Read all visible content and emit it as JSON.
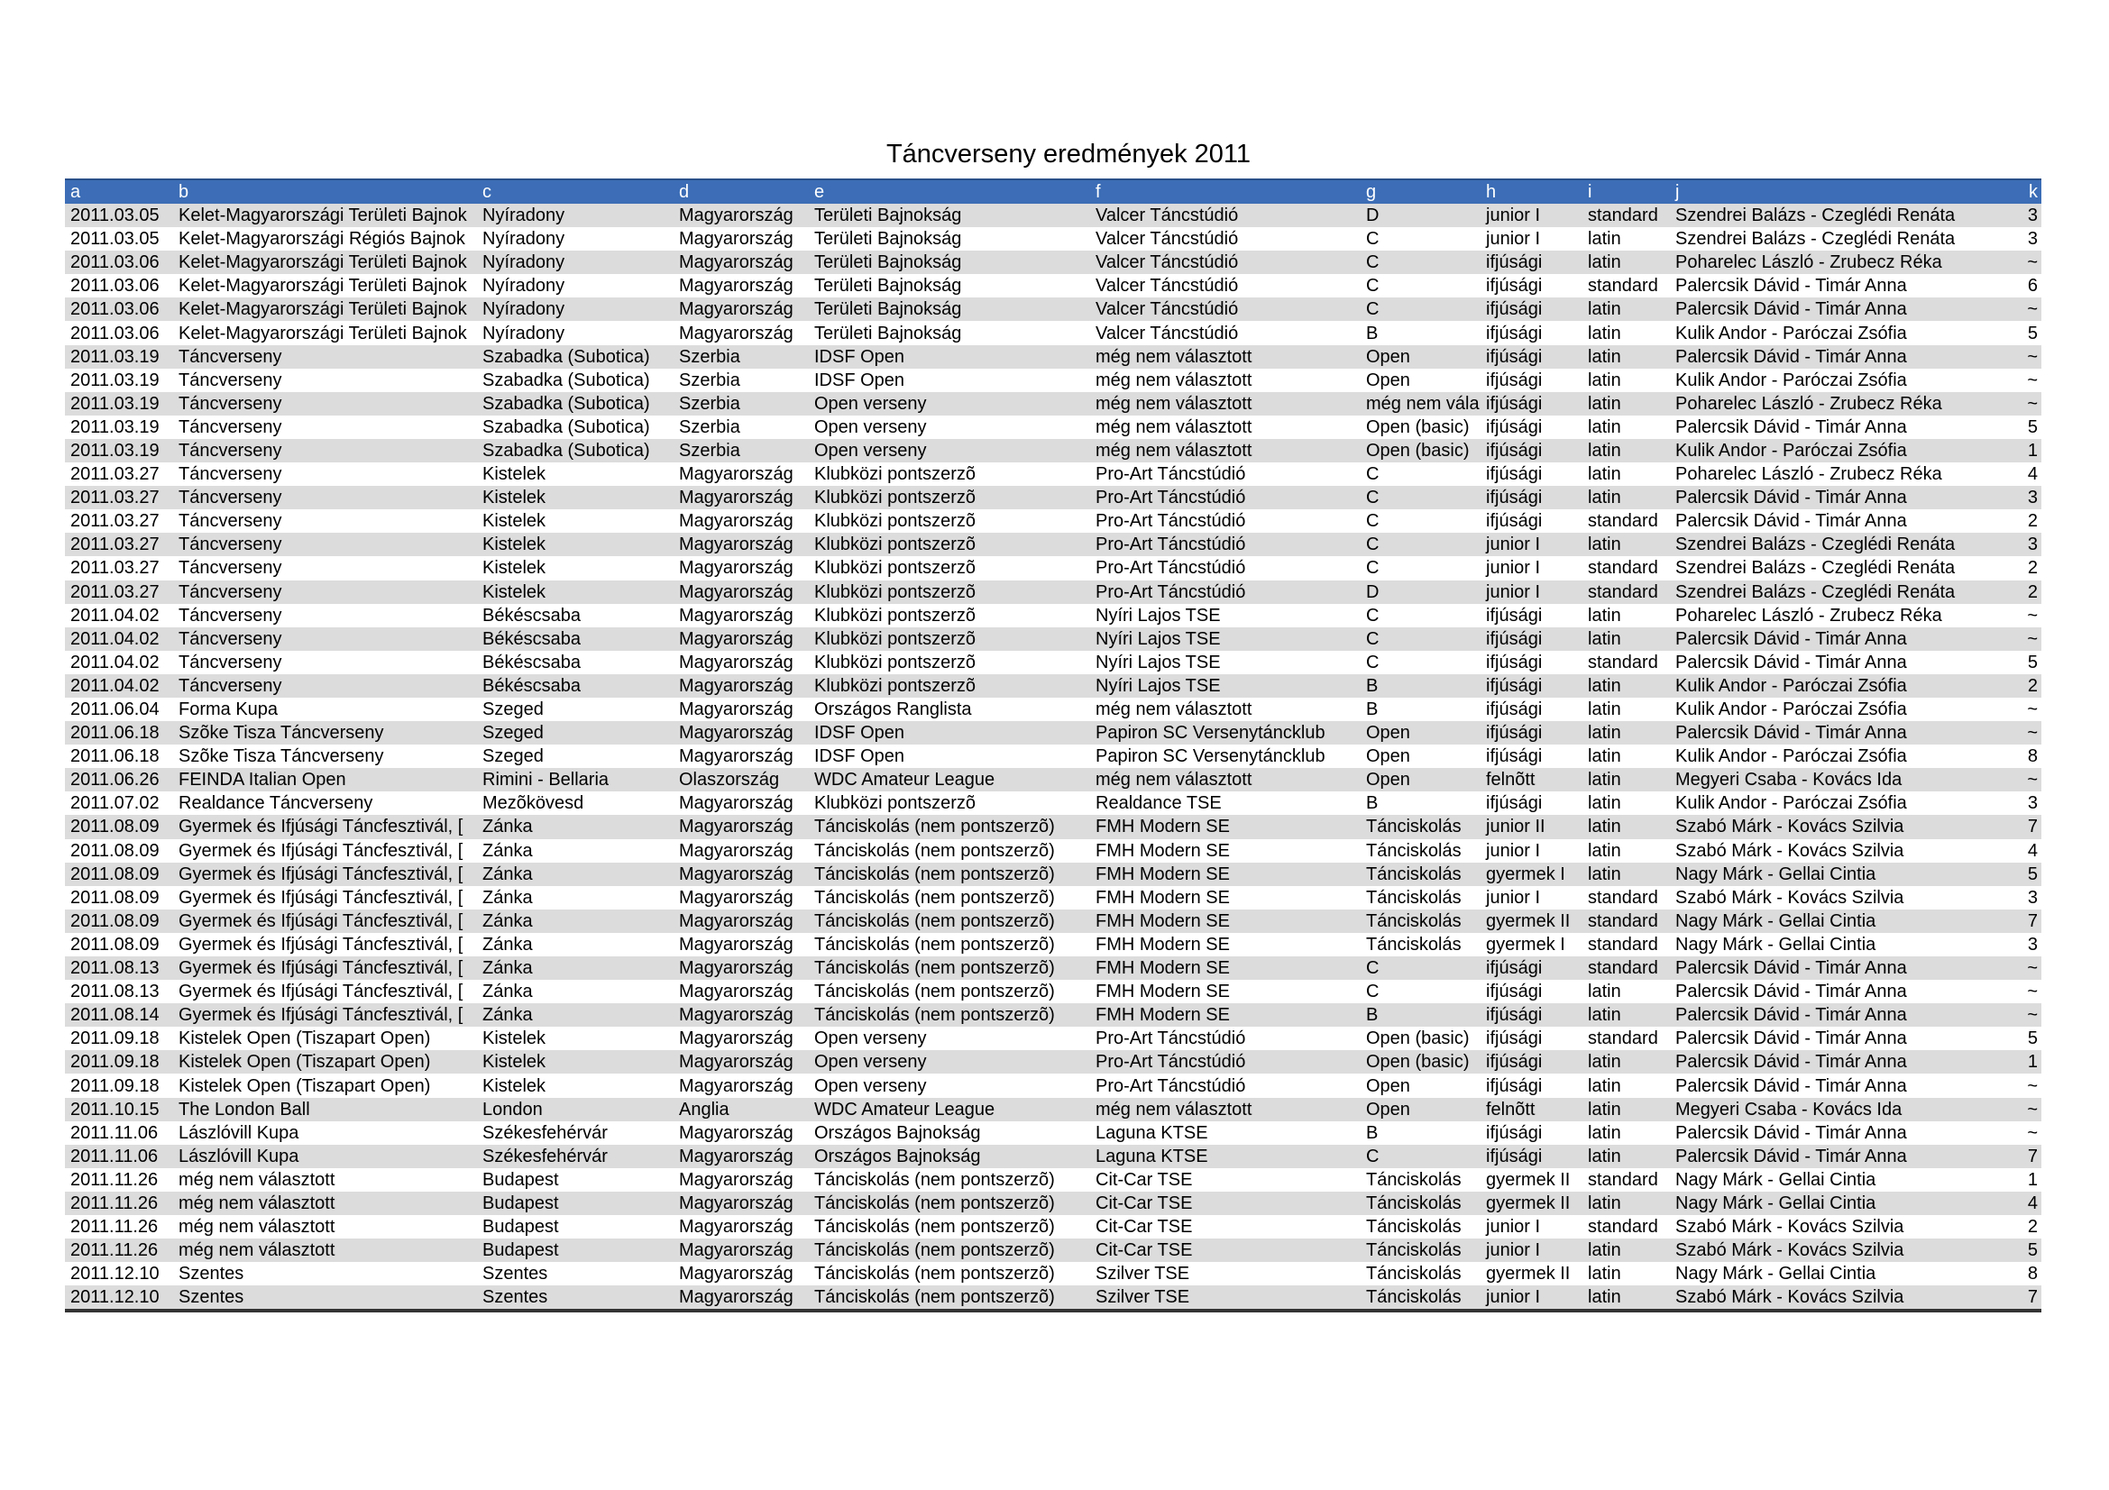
{
  "header": {
    "title": "Táncverseny eredmények 2011"
  },
  "table": {
    "columns": [
      "a",
      "b",
      "c",
      "d",
      "e",
      "f",
      "g",
      "h",
      "i",
      "j",
      "k"
    ],
    "rows": [
      [
        "2011.03.05",
        "Kelet-Magyarországi Területi Bajnok",
        "Nyíradony",
        "Magyarország",
        "Területi Bajnokság",
        "Valcer Táncstúdió",
        "D",
        "junior I",
        "standard",
        "Szendrei Balázs - Czeglédi Renáta",
        "3"
      ],
      [
        "2011.03.05",
        "Kelet-Magyarországi Régiós Bajnok",
        "Nyíradony",
        "Magyarország",
        "Területi Bajnokság",
        "Valcer Táncstúdió",
        "C",
        "junior I",
        "latin",
        "Szendrei Balázs - Czeglédi Renáta",
        "3"
      ],
      [
        "2011.03.06",
        "Kelet-Magyarországi Területi Bajnok",
        "Nyíradony",
        "Magyarország",
        "Területi Bajnokság",
        "Valcer Táncstúdió",
        "C",
        "ifjúsági",
        "latin",
        "Poharelec László - Zrubecz Réka",
        "~"
      ],
      [
        "2011.03.06",
        "Kelet-Magyarországi Területi Bajnok",
        "Nyíradony",
        "Magyarország",
        "Területi Bajnokság",
        "Valcer Táncstúdió",
        "C",
        "ifjúsági",
        "standard",
        "Palercsik Dávid - Timár Anna",
        "6"
      ],
      [
        "2011.03.06",
        "Kelet-Magyarországi Területi Bajnok",
        "Nyíradony",
        "Magyarország",
        "Területi Bajnokság",
        "Valcer Táncstúdió",
        "C",
        "ifjúsági",
        "latin",
        "Palercsik Dávid - Timár Anna",
        "~"
      ],
      [
        "2011.03.06",
        "Kelet-Magyarországi Területi Bajnok",
        "Nyíradony",
        "Magyarország",
        "Területi Bajnokság",
        "Valcer Táncstúdió",
        "B",
        "ifjúsági",
        "latin",
        "Kulik Andor - Paróczai Zsófia",
        "5"
      ],
      [
        "2011.03.19",
        "Táncverseny",
        "Szabadka (Subotica)",
        "Szerbia",
        "IDSF Open",
        "még nem választott",
        "Open",
        "ifjúsági",
        "latin",
        "Palercsik Dávid - Timár Anna",
        "~"
      ],
      [
        "2011.03.19",
        "Táncverseny",
        "Szabadka (Subotica)",
        "Szerbia",
        "IDSF Open",
        "még nem választott",
        "Open",
        "ifjúsági",
        "latin",
        "Kulik Andor - Paróczai Zsófia",
        "~"
      ],
      [
        "2011.03.19",
        "Táncverseny",
        "Szabadka (Subotica)",
        "Szerbia",
        "Open verseny",
        "még nem választott",
        "még nem vála",
        "ifjúsági",
        "latin",
        "Poharelec László - Zrubecz Réka",
        "~"
      ],
      [
        "2011.03.19",
        "Táncverseny",
        "Szabadka (Subotica)",
        "Szerbia",
        "Open verseny",
        "még nem választott",
        "Open (basic)",
        "ifjúsági",
        "latin",
        "Palercsik Dávid - Timár Anna",
        "5"
      ],
      [
        "2011.03.19",
        "Táncverseny",
        "Szabadka (Subotica)",
        "Szerbia",
        "Open verseny",
        "még nem választott",
        "Open (basic)",
        "ifjúsági",
        "latin",
        "Kulik Andor - Paróczai Zsófia",
        "1"
      ],
      [
        "2011.03.27",
        "Táncverseny",
        "Kistelek",
        "Magyarország",
        "Klubközi pontszerzõ",
        "Pro-Art Táncstúdió",
        "C",
        "ifjúsági",
        "latin",
        "Poharelec László - Zrubecz Réka",
        "4"
      ],
      [
        "2011.03.27",
        "Táncverseny",
        "Kistelek",
        "Magyarország",
        "Klubközi pontszerzõ",
        "Pro-Art Táncstúdió",
        "C",
        "ifjúsági",
        "latin",
        "Palercsik Dávid - Timár Anna",
        "3"
      ],
      [
        "2011.03.27",
        "Táncverseny",
        "Kistelek",
        "Magyarország",
        "Klubközi pontszerzõ",
        "Pro-Art Táncstúdió",
        "C",
        "ifjúsági",
        "standard",
        "Palercsik Dávid - Timár Anna",
        "2"
      ],
      [
        "2011.03.27",
        "Táncverseny",
        "Kistelek",
        "Magyarország",
        "Klubközi pontszerzõ",
        "Pro-Art Táncstúdió",
        "C",
        "junior I",
        "latin",
        "Szendrei Balázs - Czeglédi Renáta",
        "3"
      ],
      [
        "2011.03.27",
        "Táncverseny",
        "Kistelek",
        "Magyarország",
        "Klubközi pontszerzõ",
        "Pro-Art Táncstúdió",
        "C",
        "junior I",
        "standard",
        "Szendrei Balázs - Czeglédi Renáta",
        "2"
      ],
      [
        "2011.03.27",
        "Táncverseny",
        "Kistelek",
        "Magyarország",
        "Klubközi pontszerzõ",
        "Pro-Art Táncstúdió",
        "D",
        "junior I",
        "standard",
        "Szendrei Balázs - Czeglédi Renáta",
        "2"
      ],
      [
        "2011.04.02",
        "Táncverseny",
        "Békéscsaba",
        "Magyarország",
        "Klubközi pontszerzõ",
        "Nyíri Lajos TSE",
        "C",
        "ifjúsági",
        "latin",
        "Poharelec László - Zrubecz Réka",
        "~"
      ],
      [
        "2011.04.02",
        "Táncverseny",
        "Békéscsaba",
        "Magyarország",
        "Klubközi pontszerzõ",
        "Nyíri Lajos TSE",
        "C",
        "ifjúsági",
        "latin",
        "Palercsik Dávid - Timár Anna",
        "~"
      ],
      [
        "2011.04.02",
        "Táncverseny",
        "Békéscsaba",
        "Magyarország",
        "Klubközi pontszerzõ",
        "Nyíri Lajos TSE",
        "C",
        "ifjúsági",
        "standard",
        "Palercsik Dávid - Timár Anna",
        "5"
      ],
      [
        "2011.04.02",
        "Táncverseny",
        "Békéscsaba",
        "Magyarország",
        "Klubközi pontszerzõ",
        "Nyíri Lajos TSE",
        "B",
        "ifjúsági",
        "latin",
        "Kulik Andor - Paróczai Zsófia",
        "2"
      ],
      [
        "2011.06.04",
        "Forma Kupa",
        "Szeged",
        "Magyarország",
        "Országos Ranglista",
        "még nem választott",
        "B",
        "ifjúsági",
        "latin",
        "Kulik Andor - Paróczai Zsófia",
        "~"
      ],
      [
        "2011.06.18",
        "Szõke Tisza Táncverseny",
        "Szeged",
        "Magyarország",
        "IDSF Open",
        "Papiron SC Versenytáncklub",
        "Open",
        "ifjúsági",
        "latin",
        "Palercsik Dávid - Timár Anna",
        "~"
      ],
      [
        "2011.06.18",
        "Szõke Tisza Táncverseny",
        "Szeged",
        "Magyarország",
        "IDSF Open",
        "Papiron SC Versenytáncklub",
        "Open",
        "ifjúsági",
        "latin",
        "Kulik Andor - Paróczai Zsófia",
        "8"
      ],
      [
        "2011.06.26",
        "FEINDA Italian Open",
        "Rimini - Bellaria",
        "Olaszország",
        "WDC Amateur League",
        "még nem választott",
        "Open",
        "felnõtt",
        "latin",
        "Megyeri Csaba - Kovács Ida",
        "~"
      ],
      [
        "2011.07.02",
        "Realdance Táncverseny",
        "Mezõkövesd",
        "Magyarország",
        "Klubközi pontszerzõ",
        "Realdance TSE",
        "B",
        "ifjúsági",
        "latin",
        "Kulik Andor - Paróczai Zsófia",
        "3"
      ],
      [
        "2011.08.09",
        "Gyermek és Ifjúsági Táncfesztivál, [",
        "Zánka",
        "Magyarország",
        "Tánciskolás (nem pontszerzõ)",
        "FMH Modern SE",
        "Tánciskolás",
        "junior II",
        "latin",
        "Szabó Márk - Kovács Szilvia",
        "7"
      ],
      [
        "2011.08.09",
        "Gyermek és Ifjúsági Táncfesztivál, [",
        "Zánka",
        "Magyarország",
        "Tánciskolás (nem pontszerzõ)",
        "FMH Modern SE",
        "Tánciskolás",
        "junior I",
        "latin",
        "Szabó Márk - Kovács Szilvia",
        "4"
      ],
      [
        "2011.08.09",
        "Gyermek és Ifjúsági Táncfesztivál, [",
        "Zánka",
        "Magyarország",
        "Tánciskolás (nem pontszerzõ)",
        "FMH Modern SE",
        "Tánciskolás",
        "gyermek I",
        "latin",
        "Nagy Márk - Gellai Cintia",
        "5"
      ],
      [
        "2011.08.09",
        "Gyermek és Ifjúsági Táncfesztivál, [",
        "Zánka",
        "Magyarország",
        "Tánciskolás (nem pontszerzõ)",
        "FMH Modern SE",
        "Tánciskolás",
        "junior I",
        "standard",
        "Szabó Márk - Kovács Szilvia",
        "3"
      ],
      [
        "2011.08.09",
        "Gyermek és Ifjúsági Táncfesztivál, [",
        "Zánka",
        "Magyarország",
        "Tánciskolás (nem pontszerzõ)",
        "FMH Modern SE",
        "Tánciskolás",
        "gyermek II",
        "standard",
        "Nagy Márk - Gellai Cintia",
        "7"
      ],
      [
        "2011.08.09",
        "Gyermek és Ifjúsági Táncfesztivál, [",
        "Zánka",
        "Magyarország",
        "Tánciskolás (nem pontszerzõ)",
        "FMH Modern SE",
        "Tánciskolás",
        "gyermek I",
        "standard",
        "Nagy Márk - Gellai Cintia",
        "3"
      ],
      [
        "2011.08.13",
        "Gyermek és Ifjúsági Táncfesztivál, [",
        "Zánka",
        "Magyarország",
        "Tánciskolás (nem pontszerzõ)",
        "FMH Modern SE",
        "C",
        "ifjúsági",
        "standard",
        "Palercsik Dávid - Timár Anna",
        "~"
      ],
      [
        "2011.08.13",
        "Gyermek és Ifjúsági Táncfesztivál, [",
        "Zánka",
        "Magyarország",
        "Tánciskolás (nem pontszerzõ)",
        "FMH Modern SE",
        "C",
        "ifjúsági",
        "latin",
        "Palercsik Dávid - Timár Anna",
        "~"
      ],
      [
        "2011.08.14",
        "Gyermek és Ifjúsági Táncfesztivál, [",
        "Zánka",
        "Magyarország",
        "Tánciskolás (nem pontszerzõ)",
        "FMH Modern SE",
        "B",
        "ifjúsági",
        "latin",
        "Palercsik Dávid - Timár Anna",
        "~"
      ],
      [
        "2011.09.18",
        "Kistelek Open (Tiszapart Open)",
        "Kistelek",
        "Magyarország",
        "Open verseny",
        "Pro-Art Táncstúdió",
        "Open (basic)",
        "ifjúsági",
        "standard",
        "Palercsik Dávid - Timár Anna",
        "5"
      ],
      [
        "2011.09.18",
        "Kistelek Open (Tiszapart Open)",
        "Kistelek",
        "Magyarország",
        "Open verseny",
        "Pro-Art Táncstúdió",
        "Open (basic)",
        "ifjúsági",
        "latin",
        "Palercsik Dávid - Timár Anna",
        "1"
      ],
      [
        "2011.09.18",
        "Kistelek Open (Tiszapart Open)",
        "Kistelek",
        "Magyarország",
        "Open verseny",
        "Pro-Art Táncstúdió",
        "Open",
        "ifjúsági",
        "latin",
        "Palercsik Dávid - Timár Anna",
        "~"
      ],
      [
        "2011.10.15",
        "The London Ball",
        "London",
        "Anglia",
        "WDC Amateur League",
        "még nem választott",
        "Open",
        "felnõtt",
        "latin",
        "Megyeri Csaba - Kovács Ida",
        "~"
      ],
      [
        "2011.11.06",
        "Lászlóvill Kupa",
        "Székesfehérvár",
        "Magyarország",
        "Országos Bajnokság",
        "Laguna KTSE",
        "B",
        "ifjúsági",
        "latin",
        "Palercsik Dávid - Timár Anna",
        "~"
      ],
      [
        "2011.11.06",
        "Lászlóvill Kupa",
        "Székesfehérvár",
        "Magyarország",
        "Országos Bajnokság",
        "Laguna KTSE",
        "C",
        "ifjúsági",
        "latin",
        "Palercsik Dávid - Timár Anna",
        "7"
      ],
      [
        "2011.11.26",
        "még nem választott",
        "Budapest",
        "Magyarország",
        "Tánciskolás (nem pontszerzõ)",
        "Cit-Car TSE",
        "Tánciskolás",
        "gyermek II",
        "standard",
        "Nagy Márk - Gellai Cintia",
        "1"
      ],
      [
        "2011.11.26",
        "még nem választott",
        "Budapest",
        "Magyarország",
        "Tánciskolás (nem pontszerzõ)",
        "Cit-Car TSE",
        "Tánciskolás",
        "gyermek II",
        "latin",
        "Nagy Márk - Gellai Cintia",
        "4"
      ],
      [
        "2011.11.26",
        "még nem választott",
        "Budapest",
        "Magyarország",
        "Tánciskolás (nem pontszerzõ)",
        "Cit-Car TSE",
        "Tánciskolás",
        "junior I",
        "standard",
        "Szabó Márk - Kovács Szilvia",
        "2"
      ],
      [
        "2011.11.26",
        "még nem választott",
        "Budapest",
        "Magyarország",
        "Tánciskolás (nem pontszerzõ)",
        "Cit-Car TSE",
        "Tánciskolás",
        "junior I",
        "latin",
        "Szabó Márk - Kovács Szilvia",
        "5"
      ],
      [
        "2011.12.10",
        "Szentes",
        "Szentes",
        "Magyarország",
        "Tánciskolás (nem pontszerzõ)",
        "Szilver TSE",
        "Tánciskolás",
        "gyermek II",
        "latin",
        "Nagy Márk - Gellai Cintia",
        "8"
      ],
      [
        "2011.12.10",
        "Szentes",
        "Szentes",
        "Magyarország",
        "Tánciskolás (nem pontszerzõ)",
        "Szilver TSE",
        "Tánciskolás",
        "junior I",
        "latin",
        "Szabó Márk - Kovács Szilvia",
        "7"
      ]
    ]
  }
}
